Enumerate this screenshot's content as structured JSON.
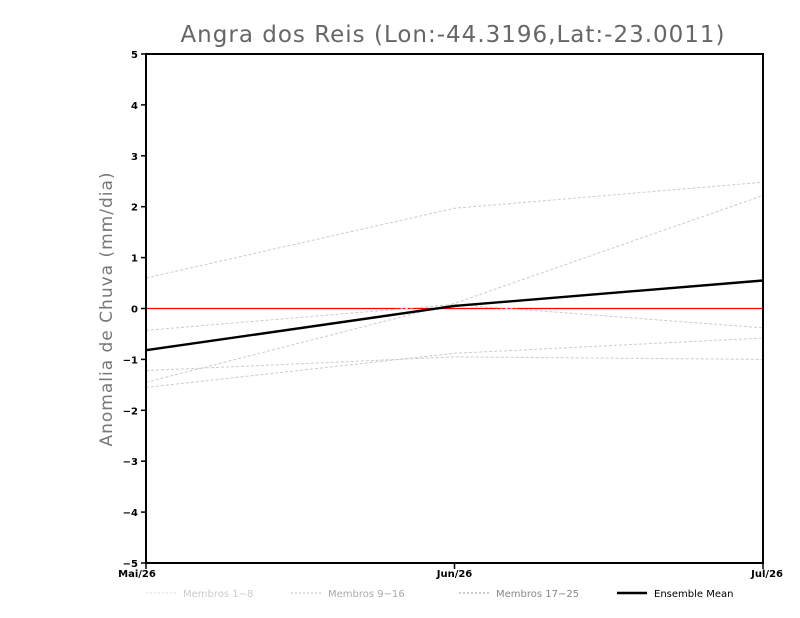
{
  "chart_data": {
    "type": "line",
    "title": "Angra dos Reis (Lon:-44.3196,Lat:-23.0011)",
    "ylabel": "Anomalia de Chuva (mm/dia)",
    "xlabel": "",
    "categories": [
      "Mai/26",
      "Jun/26",
      "Jul/26"
    ],
    "ylim": [
      -5,
      5
    ],
    "yticks": [
      -5,
      -4,
      -3,
      -2,
      -1,
      0,
      1,
      2,
      3,
      4,
      5
    ],
    "grid": false,
    "zero_line": {
      "value": 0,
      "color": "#ff0000"
    },
    "legend_position": "bottom",
    "legend": [
      {
        "label": "Membros 1-8",
        "color": "#dddddd",
        "style": "dashed"
      },
      {
        "label": "Membros 9-16",
        "color": "#bbbbbb",
        "style": "dashed"
      },
      {
        "label": "Membros 17-25",
        "color": "#999999",
        "style": "dashed"
      },
      {
        "label": "Ensemble Mean",
        "color": "#000000",
        "style": "solid"
      }
    ],
    "series": [
      {
        "values": [
          0.6,
          1.97,
          2.48
        ],
        "color": "#cccccc",
        "style": "dashed"
      },
      {
        "values": [
          -1.45,
          0.1,
          2.22
        ],
        "color": "#cccccc",
        "style": "dashed"
      },
      {
        "values": [
          -0.43,
          0.08,
          -0.38
        ],
        "color": "#cccccc",
        "style": "dashed"
      },
      {
        "values": [
          -1.22,
          -0.95,
          -1.0
        ],
        "color": "#cccccc",
        "style": "dashed"
      },
      {
        "values": [
          -1.55,
          -0.88,
          -0.58
        ],
        "color": "#cccccc",
        "style": "dashed"
      },
      {
        "name": "Ensemble Mean",
        "values": [
          -0.82,
          0.05,
          0.55
        ],
        "color": "#000000",
        "style": "solid"
      }
    ]
  }
}
